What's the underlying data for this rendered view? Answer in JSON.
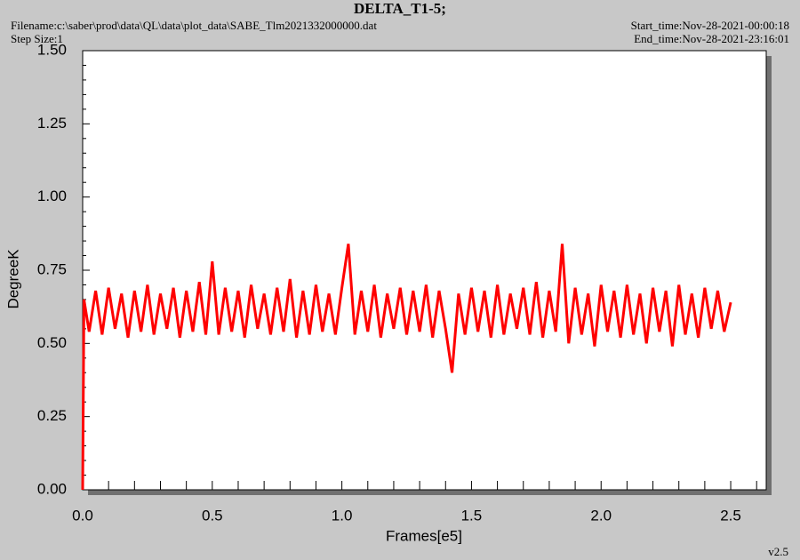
{
  "chart_data": {
    "type": "line",
    "title": "DELTA_T1-5;",
    "filename": "Filename:c:\\saber\\prod\\data\\QL\\data\\plot_data\\SABE_Tlm2021332000000.dat",
    "step_size": "Step Size:1",
    "start_time": "Start_time:Nov-28-2021-00:00:18",
    "end_time": "End_time:Nov-28-2021-23:16:01",
    "xlabel": "Frames[e5]",
    "ylabel": "DegreeK",
    "version": "v2.5",
    "color": "#ff0000",
    "xlim": [
      0,
      2.637
    ],
    "ylim": [
      0,
      1.5
    ],
    "xticks": [
      {
        "value": 0,
        "label": "0.0"
      },
      {
        "value": 0.5,
        "label": "0.5"
      },
      {
        "value": 1,
        "label": "1.0"
      },
      {
        "value": 1.5,
        "label": "1.5"
      },
      {
        "value": 2,
        "label": "2.0"
      },
      {
        "value": 2.5,
        "label": "2.5"
      }
    ],
    "yticks": [
      {
        "value": 0,
        "label": "0.00"
      },
      {
        "value": 0.25,
        "label": "0.25"
      },
      {
        "value": 0.5,
        "label": "0.50"
      },
      {
        "value": 0.75,
        "label": "0.75"
      },
      {
        "value": 1,
        "label": "1.00"
      },
      {
        "value": 1.25,
        "label": "1.25"
      },
      {
        "value": 1.5,
        "label": "1.50"
      }
    ],
    "xminorticks": [
      0.1,
      0.2,
      0.3,
      0.4,
      0.6,
      0.7,
      0.8,
      0.9,
      1.1,
      1.2,
      1.3,
      1.4,
      1.6,
      1.7,
      1.8,
      1.9,
      2.1,
      2.2,
      2.3,
      2.4,
      2.6
    ],
    "yminorticks": [
      0.05,
      0.1,
      0.15,
      0.2,
      0.3,
      0.35,
      0.4,
      0.45,
      0.55,
      0.6,
      0.65,
      0.7,
      0.8,
      0.85,
      0.9,
      0.95,
      1.05,
      1.1,
      1.15,
      1.2,
      1.3,
      1.35,
      1.4,
      1.45
    ],
    "x": [
      0,
      0.005,
      0.025,
      0.05,
      0.075,
      0.1,
      0.125,
      0.15,
      0.175,
      0.2,
      0.225,
      0.25,
      0.275,
      0.3,
      0.325,
      0.35,
      0.375,
      0.4,
      0.425,
      0.45,
      0.475,
      0.5,
      0.525,
      0.55,
      0.575,
      0.6,
      0.625,
      0.65,
      0.675,
      0.7,
      0.725,
      0.75,
      0.775,
      0.8,
      0.825,
      0.85,
      0.875,
      0.9,
      0.925,
      0.95,
      0.975,
      1,
      1.025,
      1.05,
      1.075,
      1.1,
      1.125,
      1.15,
      1.175,
      1.2,
      1.225,
      1.25,
      1.275,
      1.3,
      1.325,
      1.35,
      1.375,
      1.4,
      1.425,
      1.45,
      1.475,
      1.5,
      1.525,
      1.55,
      1.575,
      1.6,
      1.625,
      1.65,
      1.675,
      1.7,
      1.725,
      1.75,
      1.775,
      1.8,
      1.825,
      1.85,
      1.875,
      1.9,
      1.925,
      1.95,
      1.975,
      2,
      2.025,
      2.05,
      2.075,
      2.1,
      2.125,
      2.15,
      2.175,
      2.2,
      2.225,
      2.25,
      2.275,
      2.3,
      2.325,
      2.35,
      2.375,
      2.4,
      2.425,
      2.45,
      2.475,
      2.5
    ],
    "values": [
      0,
      0.65,
      0.54,
      0.68,
      0.53,
      0.69,
      0.55,
      0.67,
      0.52,
      0.68,
      0.54,
      0.7,
      0.53,
      0.67,
      0.55,
      0.69,
      0.52,
      0.68,
      0.54,
      0.71,
      0.53,
      0.78,
      0.53,
      0.69,
      0.54,
      0.68,
      0.52,
      0.7,
      0.55,
      0.67,
      0.53,
      0.69,
      0.54,
      0.72,
      0.52,
      0.68,
      0.53,
      0.7,
      0.54,
      0.67,
      0.53,
      0.69,
      0.84,
      0.53,
      0.68,
      0.54,
      0.7,
      0.52,
      0.67,
      0.55,
      0.69,
      0.53,
      0.68,
      0.54,
      0.7,
      0.52,
      0.68,
      0.55,
      0.4,
      0.67,
      0.53,
      0.69,
      0.54,
      0.68,
      0.52,
      0.7,
      0.53,
      0.67,
      0.55,
      0.69,
      0.53,
      0.71,
      0.52,
      0.68,
      0.54,
      0.84,
      0.5,
      0.69,
      0.53,
      0.67,
      0.49,
      0.7,
      0.54,
      0.68,
      0.52,
      0.7,
      0.53,
      0.67,
      0.5,
      0.69,
      0.54,
      0.68,
      0.49,
      0.7,
      0.53,
      0.67,
      0.52,
      0.69,
      0.55,
      0.68,
      0.54,
      0.64
    ]
  }
}
